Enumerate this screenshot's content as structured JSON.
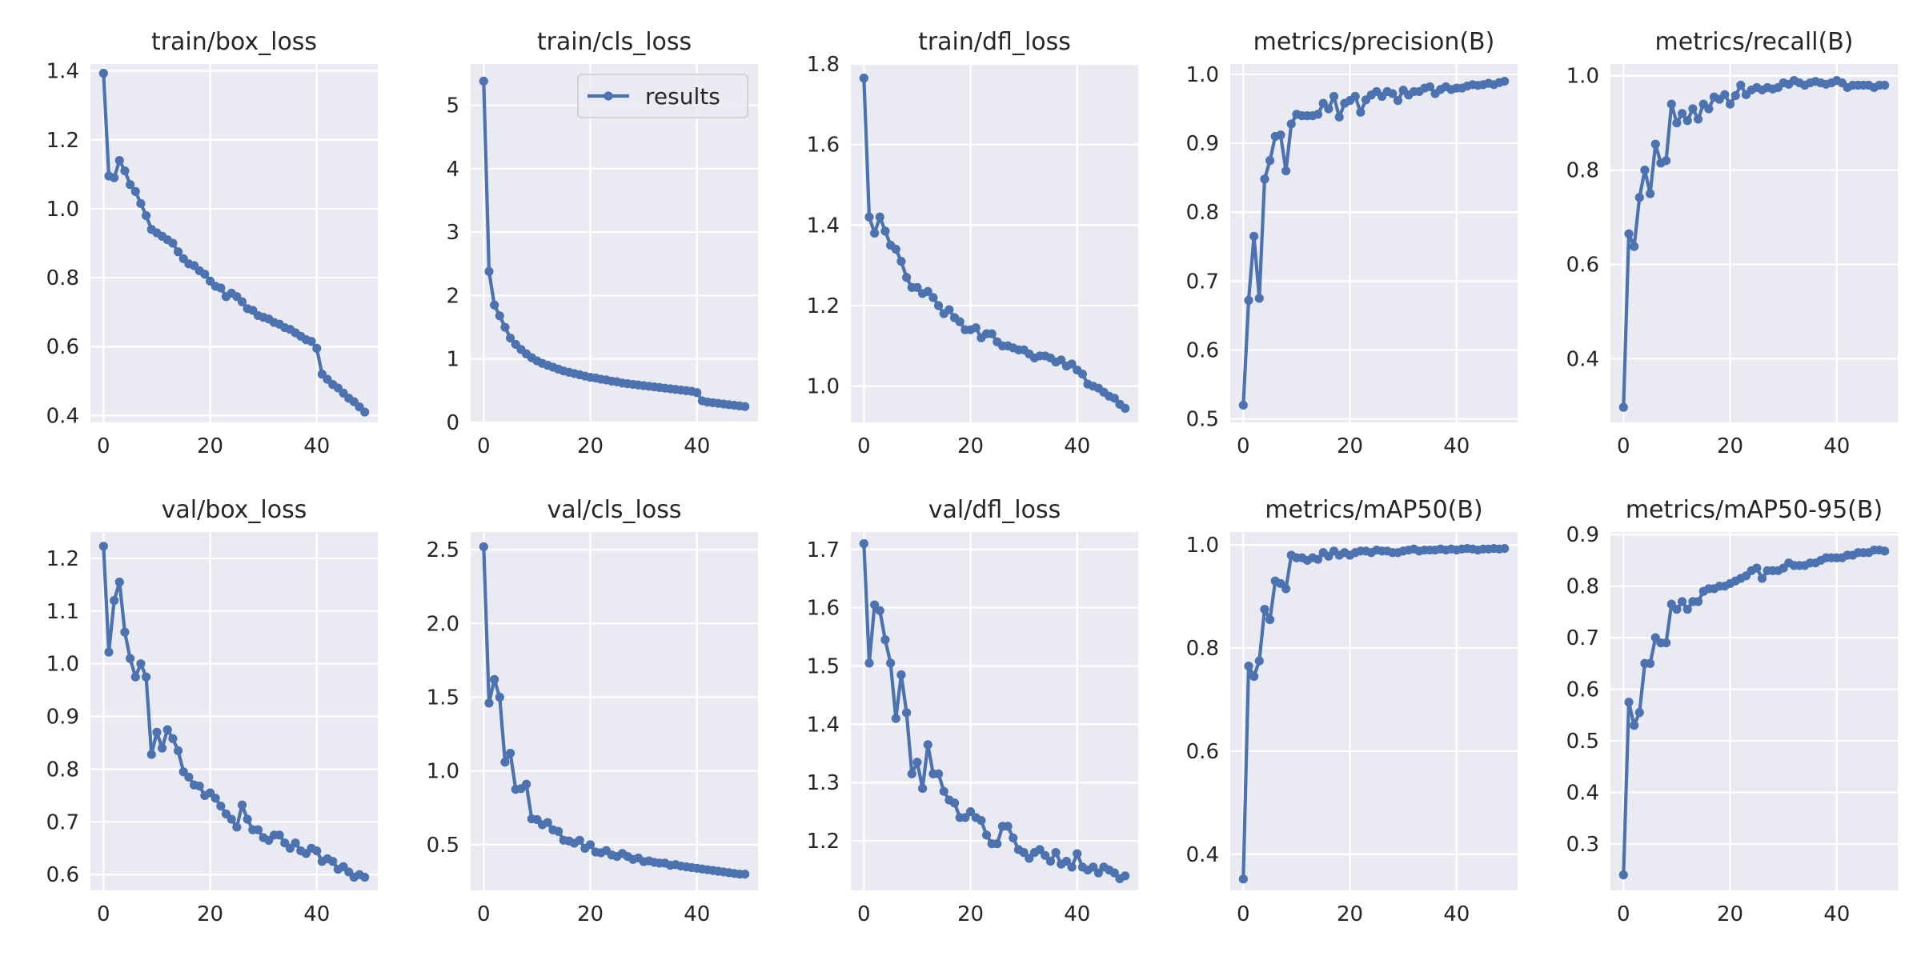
{
  "figure": {
    "background": "#ffffff",
    "plot_background": "#eaeaf2",
    "grid_color": "#ffffff",
    "line_color": "#4c72b0"
  },
  "legend": {
    "label": "results",
    "panel_index": 1,
    "placement": "top-right"
  },
  "chart_data": [
    {
      "type": "line",
      "title": "train/box_loss",
      "xlabel": "",
      "ylabel": "",
      "xlim": [
        -2.45,
        51.45
      ],
      "ylim": [
        0.38,
        1.42
      ],
      "xticks": [
        0,
        20,
        40
      ],
      "yticks": [
        0.4,
        0.6,
        0.8,
        1.0,
        1.2,
        1.4
      ],
      "ytick_labels": [
        "0.4",
        "0.6",
        "0.8",
        "1.0",
        "1.2",
        "1.4"
      ],
      "grid": true,
      "series": [
        {
          "x": "epochs 0-49",
          "values": [
            1.393,
            1.095,
            1.09,
            1.14,
            1.11,
            1.07,
            1.05,
            1.015,
            0.98,
            0.94,
            0.93,
            0.92,
            0.91,
            0.9,
            0.875,
            0.855,
            0.84,
            0.835,
            0.82,
            0.81,
            0.79,
            0.775,
            0.77,
            0.745,
            0.755,
            0.745,
            0.73,
            0.71,
            0.705,
            0.69,
            0.685,
            0.68,
            0.67,
            0.665,
            0.655,
            0.65,
            0.64,
            0.63,
            0.62,
            0.615,
            0.595,
            0.52,
            0.505,
            0.49,
            0.48,
            0.465,
            0.45,
            0.44,
            0.425,
            0.41
          ]
        }
      ]
    },
    {
      "type": "line",
      "title": "train/cls_loss",
      "xlabel": "",
      "ylabel": "",
      "xlim": [
        -2.45,
        51.45
      ],
      "ylim": [
        0.0,
        5.65
      ],
      "xticks": [
        0,
        20,
        40
      ],
      "yticks": [
        0,
        1,
        2,
        3,
        4,
        5
      ],
      "ytick_labels": [
        "0",
        "1",
        "2",
        "3",
        "4",
        "5"
      ],
      "grid": true,
      "series": [
        {
          "name": "results",
          "x": "epochs 0-49",
          "values": [
            5.38,
            2.38,
            1.85,
            1.68,
            1.5,
            1.33,
            1.23,
            1.15,
            1.08,
            1.02,
            0.97,
            0.93,
            0.9,
            0.87,
            0.84,
            0.81,
            0.79,
            0.77,
            0.75,
            0.73,
            0.71,
            0.7,
            0.68,
            0.67,
            0.65,
            0.64,
            0.62,
            0.61,
            0.6,
            0.59,
            0.58,
            0.57,
            0.56,
            0.55,
            0.54,
            0.53,
            0.52,
            0.51,
            0.5,
            0.49,
            0.47,
            0.34,
            0.32,
            0.31,
            0.3,
            0.29,
            0.28,
            0.27,
            0.26,
            0.25
          ]
        }
      ]
    },
    {
      "type": "line",
      "title": "train/dfl_loss",
      "xlabel": "",
      "ylabel": "",
      "xlim": [
        -2.45,
        51.45
      ],
      "ylim": [
        0.91,
        1.8
      ],
      "xticks": [
        0,
        20,
        40
      ],
      "yticks": [
        1.0,
        1.2,
        1.4,
        1.6,
        1.8
      ],
      "ytick_labels": [
        "1.0",
        "1.2",
        "1.4",
        "1.6",
        "1.8"
      ],
      "grid": true,
      "series": [
        {
          "x": "epochs 0-49",
          "values": [
            1.765,
            1.42,
            1.38,
            1.42,
            1.385,
            1.35,
            1.34,
            1.31,
            1.27,
            1.245,
            1.245,
            1.23,
            1.235,
            1.22,
            1.2,
            1.18,
            1.19,
            1.17,
            1.16,
            1.14,
            1.14,
            1.145,
            1.12,
            1.13,
            1.13,
            1.11,
            1.1,
            1.1,
            1.095,
            1.09,
            1.09,
            1.08,
            1.07,
            1.075,
            1.075,
            1.07,
            1.06,
            1.065,
            1.05,
            1.055,
            1.04,
            1.03,
            1.005,
            1.0,
            0.995,
            0.985,
            0.975,
            0.97,
            0.955,
            0.945
          ]
        }
      ]
    },
    {
      "type": "line",
      "title": "metrics/precision(B)",
      "xlabel": "",
      "ylabel": "",
      "xlim": [
        -2.45,
        51.45
      ],
      "ylim": [
        0.495,
        1.015
      ],
      "xticks": [
        0,
        20,
        40
      ],
      "yticks": [
        0.5,
        0.6,
        0.7,
        0.8,
        0.9,
        1.0
      ],
      "ytick_labels": [
        "0.5",
        "0.6",
        "0.7",
        "0.8",
        "0.9",
        "1.0"
      ],
      "grid": true,
      "series": [
        {
          "x": "epochs 0-49",
          "values": [
            0.52,
            0.672,
            0.765,
            0.675,
            0.848,
            0.875,
            0.91,
            0.912,
            0.86,
            0.928,
            0.942,
            0.94,
            0.94,
            0.94,
            0.942,
            0.958,
            0.95,
            0.968,
            0.938,
            0.958,
            0.962,
            0.968,
            0.945,
            0.963,
            0.97,
            0.975,
            0.968,
            0.975,
            0.972,
            0.962,
            0.977,
            0.97,
            0.975,
            0.975,
            0.98,
            0.982,
            0.972,
            0.978,
            0.982,
            0.978,
            0.98,
            0.98,
            0.983,
            0.985,
            0.984,
            0.985,
            0.987,
            0.985,
            0.988,
            0.99
          ]
        }
      ]
    },
    {
      "type": "line",
      "title": "metrics/recall(B)",
      "xlabel": "",
      "ylabel": "",
      "xlim": [
        -2.45,
        51.45
      ],
      "ylim": [
        0.265,
        1.025
      ],
      "xticks": [
        0,
        20,
        40
      ],
      "yticks": [
        0.4,
        0.6,
        0.8,
        1.0
      ],
      "ytick_labels": [
        "0.4",
        "0.6",
        "0.8",
        "1.0"
      ],
      "grid": true,
      "series": [
        {
          "x": "epochs 0-49",
          "values": [
            0.297,
            0.665,
            0.638,
            0.742,
            0.8,
            0.75,
            0.855,
            0.815,
            0.82,
            0.94,
            0.9,
            0.92,
            0.905,
            0.93,
            0.908,
            0.94,
            0.93,
            0.955,
            0.95,
            0.96,
            0.94,
            0.958,
            0.98,
            0.96,
            0.97,
            0.975,
            0.97,
            0.975,
            0.972,
            0.975,
            0.985,
            0.982,
            0.99,
            0.985,
            0.98,
            0.985,
            0.988,
            0.985,
            0.982,
            0.985,
            0.99,
            0.985,
            0.975,
            0.98,
            0.98,
            0.98,
            0.98,
            0.975,
            0.98,
            0.98
          ]
        }
      ]
    },
    {
      "type": "line",
      "title": "val/box_loss",
      "xlabel": "",
      "ylabel": "",
      "xlim": [
        -2.45,
        51.45
      ],
      "ylim": [
        0.57,
        1.25
      ],
      "xticks": [
        0,
        20,
        40
      ],
      "yticks": [
        0.6,
        0.7,
        0.8,
        0.9,
        1.0,
        1.1,
        1.2
      ],
      "ytick_labels": [
        "0.6",
        "0.7",
        "0.8",
        "0.9",
        "1.0",
        "1.1",
        "1.2"
      ],
      "grid": true,
      "series": [
        {
          "x": "epochs 0-49",
          "values": [
            1.223,
            1.022,
            1.12,
            1.155,
            1.06,
            1.01,
            0.975,
            1.0,
            0.975,
            0.828,
            0.87,
            0.84,
            0.875,
            0.858,
            0.835,
            0.795,
            0.785,
            0.77,
            0.768,
            0.75,
            0.755,
            0.745,
            0.73,
            0.715,
            0.705,
            0.69,
            0.732,
            0.705,
            0.685,
            0.685,
            0.67,
            0.665,
            0.675,
            0.675,
            0.66,
            0.65,
            0.66,
            0.645,
            0.64,
            0.65,
            0.645,
            0.625,
            0.63,
            0.625,
            0.61,
            0.615,
            0.605,
            0.595,
            0.6,
            0.595
          ]
        }
      ]
    },
    {
      "type": "line",
      "title": "val/cls_loss",
      "xlabel": "",
      "ylabel": "",
      "xlim": [
        -2.45,
        51.45
      ],
      "ylim": [
        0.19,
        2.62
      ],
      "xticks": [
        0,
        20,
        40
      ],
      "yticks": [
        0.5,
        1.0,
        1.5,
        2.0,
        2.5
      ],
      "ytick_labels": [
        "0.5",
        "1.0",
        "1.5",
        "2.0",
        "2.5"
      ],
      "grid": true,
      "series": [
        {
          "x": "epochs 0-49",
          "values": [
            2.52,
            1.46,
            1.62,
            1.5,
            1.06,
            1.12,
            0.875,
            0.88,
            0.91,
            0.675,
            0.67,
            0.635,
            0.65,
            0.6,
            0.59,
            0.53,
            0.525,
            0.51,
            0.53,
            0.475,
            0.5,
            0.45,
            0.445,
            0.46,
            0.43,
            0.42,
            0.44,
            0.42,
            0.4,
            0.41,
            0.385,
            0.39,
            0.38,
            0.375,
            0.375,
            0.36,
            0.365,
            0.355,
            0.35,
            0.345,
            0.34,
            0.335,
            0.33,
            0.325,
            0.32,
            0.315,
            0.31,
            0.305,
            0.3,
            0.3
          ]
        }
      ]
    },
    {
      "type": "line",
      "title": "val/dfl_loss",
      "xlabel": "",
      "ylabel": "",
      "xlim": [
        -2.45,
        51.45
      ],
      "ylim": [
        1.115,
        1.73
      ],
      "xticks": [
        0,
        20,
        40
      ],
      "yticks": [
        1.2,
        1.3,
        1.4,
        1.5,
        1.6,
        1.7
      ],
      "ytick_labels": [
        "1.2",
        "1.3",
        "1.4",
        "1.5",
        "1.6",
        "1.7"
      ],
      "grid": true,
      "series": [
        {
          "x": "epochs 0-49",
          "values": [
            1.71,
            1.505,
            1.605,
            1.595,
            1.545,
            1.505,
            1.41,
            1.485,
            1.42,
            1.315,
            1.335,
            1.29,
            1.365,
            1.315,
            1.315,
            1.285,
            1.27,
            1.265,
            1.24,
            1.24,
            1.25,
            1.24,
            1.235,
            1.21,
            1.195,
            1.195,
            1.225,
            1.225,
            1.205,
            1.185,
            1.18,
            1.17,
            1.18,
            1.185,
            1.175,
            1.165,
            1.18,
            1.16,
            1.165,
            1.155,
            1.178,
            1.155,
            1.15,
            1.155,
            1.145,
            1.155,
            1.15,
            1.145,
            1.135,
            1.14
          ]
        }
      ]
    },
    {
      "type": "line",
      "title": "metrics/mAP50(B)",
      "xlabel": "",
      "ylabel": "",
      "xlim": [
        -2.45,
        51.45
      ],
      "ylim": [
        0.33,
        1.025
      ],
      "xticks": [
        0,
        20,
        40
      ],
      "yticks": [
        0.4,
        0.6,
        0.8,
        1.0
      ],
      "ytick_labels": [
        "0.4",
        "0.6",
        "0.8",
        "1.0"
      ],
      "grid": true,
      "series": [
        {
          "x": "epochs 0-49",
          "values": [
            0.352,
            0.765,
            0.745,
            0.775,
            0.875,
            0.855,
            0.93,
            0.925,
            0.915,
            0.98,
            0.975,
            0.975,
            0.97,
            0.975,
            0.972,
            0.985,
            0.978,
            0.988,
            0.98,
            0.985,
            0.98,
            0.985,
            0.988,
            0.988,
            0.985,
            0.99,
            0.988,
            0.988,
            0.985,
            0.985,
            0.988,
            0.99,
            0.992,
            0.988,
            0.99,
            0.99,
            0.99,
            0.992,
            0.99,
            0.992,
            0.99,
            0.992,
            0.993,
            0.992,
            0.99,
            0.992,
            0.992,
            0.993,
            0.992,
            0.993
          ]
        }
      ]
    },
    {
      "type": "line",
      "title": "metrics/mAP50-95(B)",
      "xlabel": "",
      "ylabel": "",
      "xlim": [
        -2.45,
        51.45
      ],
      "ylim": [
        0.21,
        0.905
      ],
      "xticks": [
        0,
        20,
        40
      ],
      "yticks": [
        0.3,
        0.4,
        0.5,
        0.6,
        0.7,
        0.8,
        0.9
      ],
      "ytick_labels": [
        "0.3",
        "0.4",
        "0.5",
        "0.6",
        "0.7",
        "0.8",
        "0.9"
      ],
      "grid": true,
      "series": [
        {
          "x": "epochs 0-49",
          "values": [
            0.24,
            0.575,
            0.53,
            0.555,
            0.65,
            0.65,
            0.7,
            0.69,
            0.69,
            0.765,
            0.755,
            0.77,
            0.755,
            0.77,
            0.77,
            0.79,
            0.795,
            0.795,
            0.8,
            0.8,
            0.805,
            0.81,
            0.815,
            0.82,
            0.83,
            0.835,
            0.815,
            0.83,
            0.83,
            0.83,
            0.835,
            0.845,
            0.84,
            0.84,
            0.84,
            0.845,
            0.845,
            0.85,
            0.855,
            0.855,
            0.855,
            0.855,
            0.86,
            0.86,
            0.865,
            0.865,
            0.865,
            0.87,
            0.87,
            0.868
          ]
        }
      ]
    }
  ]
}
